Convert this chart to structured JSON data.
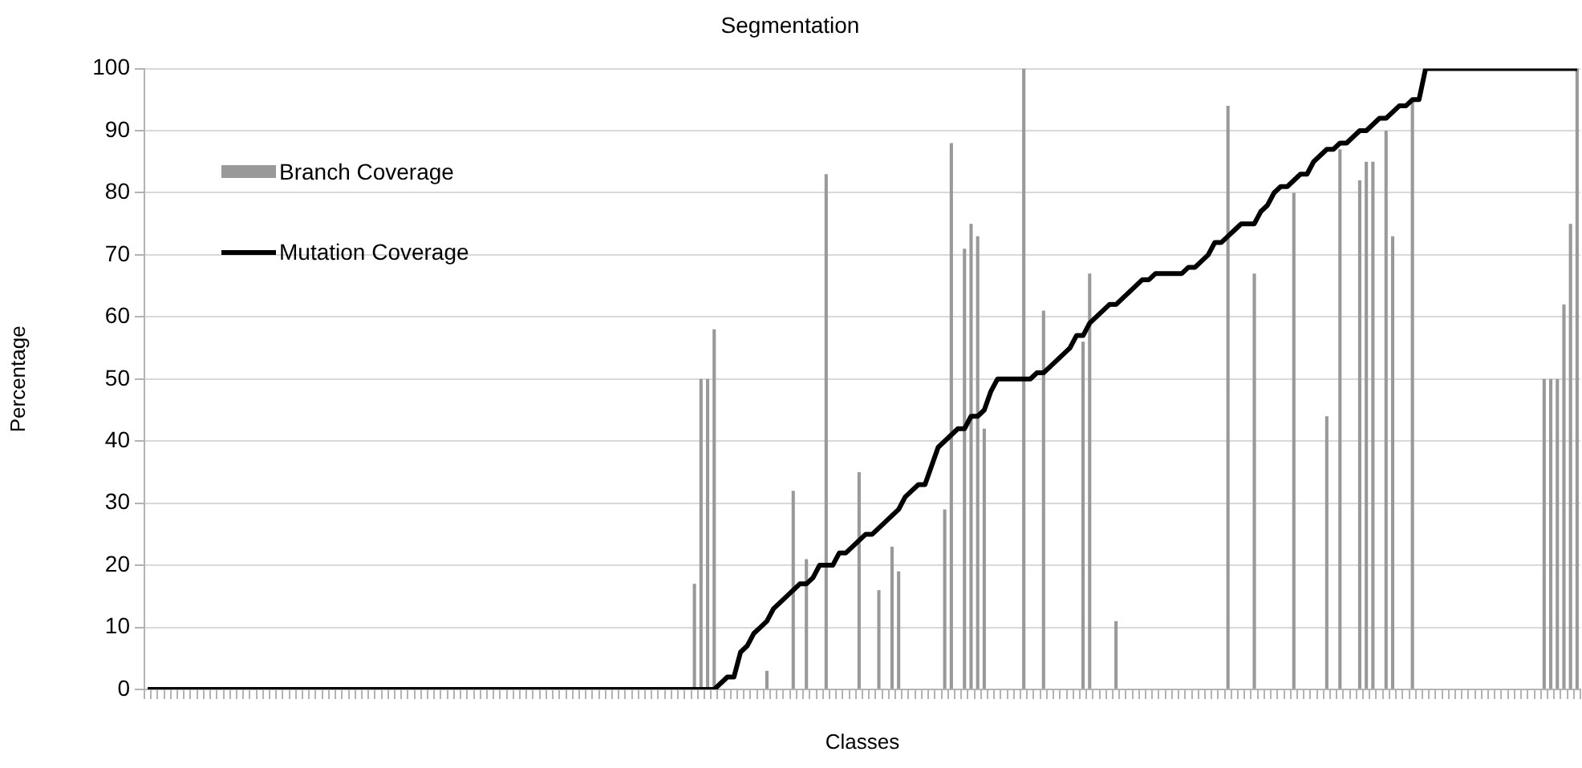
{
  "chart_data": {
    "type": "bar",
    "title": "Segmentation",
    "xlabel": "Classes",
    "ylabel": "Percentage",
    "categories": [
      null,
      null,
      null,
      null,
      null,
      null,
      null,
      null,
      null,
      null,
      null,
      null,
      null,
      null,
      null,
      null,
      null,
      null,
      null,
      null,
      null,
      null,
      null,
      null,
      null,
      null,
      null,
      null,
      null,
      null,
      null,
      null,
      null,
      null,
      null,
      null,
      null,
      null,
      null,
      null,
      null,
      null,
      null,
      null,
      null,
      null,
      null,
      null,
      null,
      null,
      null,
      null,
      null,
      null,
      null,
      null,
      null,
      null,
      null,
      null,
      null,
      null,
      null,
      null,
      null,
      null,
      null,
      null,
      null,
      null,
      null,
      null,
      null,
      null,
      null,
      null,
      null,
      null,
      null,
      null,
      null,
      null,
      null,
      null,
      null,
      null,
      null,
      null,
      null,
      null,
      null,
      null,
      null,
      null,
      null,
      null,
      null,
      null,
      null,
      null,
      null,
      null,
      null,
      null,
      null,
      null,
      null,
      null,
      null,
      null,
      null,
      null,
      null,
      null,
      null,
      null,
      null,
      null,
      null,
      null,
      null,
      null,
      null,
      null,
      null,
      null,
      null,
      null,
      null,
      null,
      null,
      null,
      null,
      null,
      null,
      null,
      null,
      null,
      null,
      null,
      null,
      null,
      null,
      null,
      null,
      null,
      null,
      null,
      null,
      null,
      null,
      null,
      null,
      null,
      null,
      null,
      null,
      null,
      null,
      null,
      null,
      null,
      null,
      null,
      null,
      null,
      null,
      null,
      null,
      null,
      null,
      null,
      null,
      null,
      null,
      null,
      null,
      null,
      null,
      null,
      null,
      null,
      null,
      null,
      null,
      null,
      null,
      null,
      null,
      null,
      null,
      null,
      null,
      null,
      null,
      null,
      null,
      null,
      null,
      null,
      null,
      null,
      null,
      null,
      null,
      null,
      null,
      null,
      null,
      null,
      null,
      null,
      null,
      null,
      null,
      null,
      null,
      null
    ],
    "series": [
      {
        "name": "Branch Coverage",
        "color": "#999999",
        "values": [
          0,
          0,
          0,
          0,
          0,
          0,
          0,
          0,
          0,
          0,
          0,
          0,
          0,
          0,
          0,
          0,
          0,
          0,
          0,
          0,
          0,
          0,
          0,
          0,
          0,
          0,
          0,
          0,
          0,
          0,
          0,
          0,
          0,
          0,
          0,
          0,
          0,
          0,
          0,
          0,
          0,
          0,
          0,
          0,
          0,
          0,
          0,
          0,
          0,
          0,
          0,
          0,
          0,
          0,
          0,
          0,
          0,
          0,
          0,
          0,
          0,
          0,
          0,
          0,
          0,
          0,
          0,
          0,
          0,
          0,
          0,
          0,
          0,
          0,
          0,
          0,
          0,
          0,
          0,
          0,
          0,
          0,
          0,
          17,
          50,
          50,
          58,
          0,
          0,
          0,
          0,
          0,
          0,
          0,
          3,
          0,
          0,
          0,
          32,
          0,
          21,
          0,
          0,
          83,
          0,
          0,
          0,
          0,
          35,
          0,
          0,
          16,
          0,
          23,
          19,
          0,
          0,
          0,
          0,
          0,
          0,
          29,
          88,
          0,
          71,
          75,
          73,
          42,
          0,
          0,
          0,
          0,
          0,
          100,
          0,
          0,
          61,
          0,
          0,
          0,
          0,
          0,
          56,
          67,
          0,
          0,
          0,
          11,
          0,
          0,
          0,
          0,
          0,
          0,
          0,
          0,
          0,
          0,
          0,
          0,
          0,
          0,
          0,
          0,
          94,
          0,
          0,
          0,
          67,
          0,
          0,
          0,
          0,
          0,
          80,
          0,
          0,
          0,
          0,
          44,
          0,
          87,
          0,
          0,
          82,
          85,
          85,
          0,
          90,
          73,
          0,
          0,
          95,
          0,
          0,
          0,
          0,
          0,
          0,
          0,
          0,
          0,
          0,
          0,
          0,
          0,
          0,
          0,
          0,
          0,
          0,
          0,
          50,
          50,
          50,
          62,
          75,
          100
        ]
      },
      {
        "name": "Mutation Coverage",
        "type": "line",
        "color": "#000000",
        "values": [
          0,
          0,
          0,
          0,
          0,
          0,
          0,
          0,
          0,
          0,
          0,
          0,
          0,
          0,
          0,
          0,
          0,
          0,
          0,
          0,
          0,
          0,
          0,
          0,
          0,
          0,
          0,
          0,
          0,
          0,
          0,
          0,
          0,
          0,
          0,
          0,
          0,
          0,
          0,
          0,
          0,
          0,
          0,
          0,
          0,
          0,
          0,
          0,
          0,
          0,
          0,
          0,
          0,
          0,
          0,
          0,
          0,
          0,
          0,
          0,
          0,
          0,
          0,
          0,
          0,
          0,
          0,
          0,
          0,
          0,
          0,
          0,
          0,
          0,
          0,
          0,
          0,
          0,
          0,
          0,
          0,
          0,
          0,
          0,
          0,
          0,
          0,
          1,
          2,
          2,
          6,
          7,
          9,
          10,
          11,
          13,
          14,
          15,
          16,
          17,
          17,
          18,
          20,
          20,
          20,
          22,
          22,
          23,
          24,
          25,
          25,
          26,
          27,
          28,
          29,
          31,
          32,
          33,
          33,
          36,
          39,
          40,
          41,
          42,
          42,
          44,
          44,
          45,
          48,
          50,
          50,
          50,
          50,
          50,
          50,
          51,
          51,
          52,
          53,
          54,
          55,
          57,
          57,
          59,
          60,
          61,
          62,
          62,
          63,
          64,
          65,
          66,
          66,
          67,
          67,
          67,
          67,
          67,
          68,
          68,
          69,
          70,
          72,
          72,
          73,
          74,
          75,
          75,
          75,
          77,
          78,
          80,
          81,
          81,
          82,
          83,
          83,
          85,
          86,
          87,
          87,
          88,
          88,
          89,
          90,
          90,
          91,
          92,
          92,
          93,
          94,
          94,
          95,
          95,
          100,
          100,
          100,
          100,
          100,
          100,
          100,
          100,
          100,
          100,
          100,
          100,
          100,
          100,
          100,
          100,
          100,
          100,
          100,
          100,
          100,
          100,
          100,
          100
        ]
      }
    ],
    "ylim": [
      0,
      100
    ],
    "yticks": [
      0,
      10,
      20,
      30,
      40,
      50,
      60,
      70,
      80,
      90,
      100
    ],
    "grid": "y",
    "legend": "top left",
    "tick_labels": "y",
    "marker": "none",
    "line_style": "solid"
  }
}
